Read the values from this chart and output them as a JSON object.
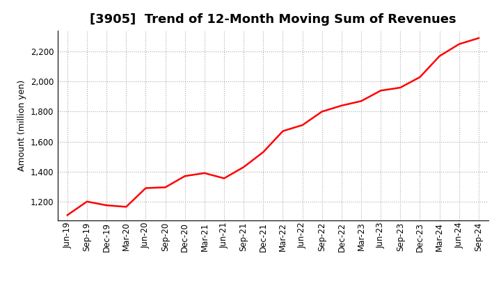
{
  "title": "[3905]  Trend of 12-Month Moving Sum of Revenues",
  "ylabel": "Amount (million yen)",
  "line_color": "#FF0000",
  "line_width": 1.8,
  "background_color": "#FFFFFF",
  "grid_color": "#AAAAAA",
  "x_labels": [
    "Jun-19",
    "Sep-19",
    "Dec-19",
    "Mar-20",
    "Jun-20",
    "Sep-20",
    "Dec-20",
    "Mar-21",
    "Jun-21",
    "Sep-21",
    "Dec-21",
    "Mar-22",
    "Jun-22",
    "Sep-22",
    "Dec-22",
    "Mar-23",
    "Jun-23",
    "Sep-23",
    "Dec-23",
    "Mar-24",
    "Jun-24",
    "Sep-24"
  ],
  "y_values": [
    1110,
    1200,
    1175,
    1165,
    1290,
    1295,
    1370,
    1390,
    1355,
    1430,
    1530,
    1670,
    1710,
    1800,
    1840,
    1870,
    1940,
    1960,
    2030,
    2170,
    2250,
    2290
  ],
  "ylim": [
    1075,
    2340
  ],
  "yticks": [
    1200,
    1400,
    1600,
    1800,
    2000,
    2200
  ],
  "title_fontsize": 13,
  "tick_fontsize": 8.5,
  "ylabel_fontsize": 9
}
